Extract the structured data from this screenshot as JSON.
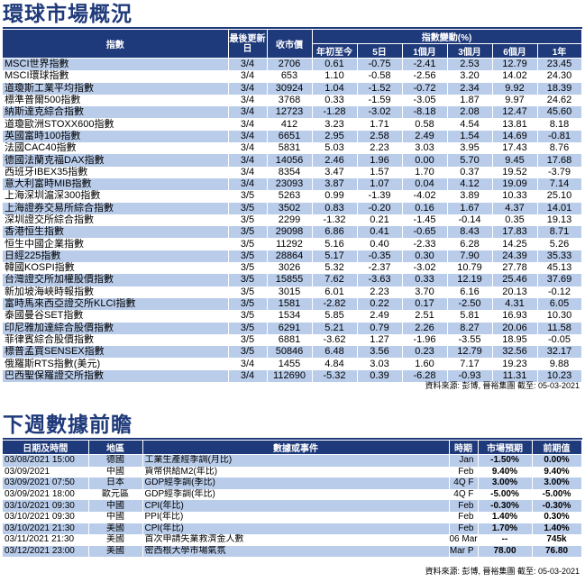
{
  "section1": {
    "title": "環球市場概況",
    "headers": {
      "index": "指數",
      "last_update": "最後更新日",
      "close": "收市價",
      "change_group": "指數變動(%)",
      "ytd": "年初至今",
      "d5": "5日",
      "m1": "1個月",
      "m3": "3個月",
      "m6": "6個月",
      "y1": "1年"
    },
    "rows": [
      {
        "name": "MSCI世界指數",
        "date": "3/4",
        "close": "2706",
        "ytd": "0.61",
        "d5": "-0.75",
        "m1": "-2.41",
        "m3": "2.53",
        "m6": "12.79",
        "y1": "23.45"
      },
      {
        "name": "MSCI環球指數",
        "date": "3/4",
        "close": "653",
        "ytd": "1.10",
        "d5": "-0.58",
        "m1": "-2.56",
        "m3": "3.20",
        "m6": "14.02",
        "y1": "24.30"
      },
      {
        "name": "道瓊斯工業平均指數",
        "date": "3/4",
        "close": "30924",
        "ytd": "1.04",
        "d5": "-1.52",
        "m1": "-0.72",
        "m3": "2.34",
        "m6": "9.92",
        "y1": "18.39"
      },
      {
        "name": "標準普爾500指數",
        "date": "3/4",
        "close": "3768",
        "ytd": "0.33",
        "d5": "-1.59",
        "m1": "-3.05",
        "m3": "1.87",
        "m6": "9.97",
        "y1": "24.62"
      },
      {
        "name": "納斯達克綜合指數",
        "date": "3/4",
        "close": "12723",
        "ytd": "-1.28",
        "d5": "-3.02",
        "m1": "-8.18",
        "m3": "2.08",
        "m6": "12.47",
        "y1": "45.60"
      },
      {
        "name": "道瓊歐洲STOXX600指數",
        "date": "3/4",
        "close": "412",
        "ytd": "3.23",
        "d5": "1.71",
        "m1": "0.58",
        "m3": "4.54",
        "m6": "13.81",
        "y1": "8.18"
      },
      {
        "name": "英國富時100指數",
        "date": "3/4",
        "close": "6651",
        "ytd": "2.95",
        "d5": "2.58",
        "m1": "2.49",
        "m3": "1.54",
        "m6": "14.69",
        "y1": "-0.81"
      },
      {
        "name": "法國CAC40指數",
        "date": "3/4",
        "close": "5831",
        "ytd": "5.03",
        "d5": "2.23",
        "m1": "3.03",
        "m3": "3.95",
        "m6": "17.43",
        "y1": "8.76"
      },
      {
        "name": "德國法蘭克福DAX指數",
        "date": "3/4",
        "close": "14056",
        "ytd": "2.46",
        "d5": "1.96",
        "m1": "0.00",
        "m3": "5.70",
        "m6": "9.45",
        "y1": "17.68"
      },
      {
        "name": "西班牙IBEX35指數",
        "date": "3/4",
        "close": "8354",
        "ytd": "3.47",
        "d5": "1.57",
        "m1": "1.70",
        "m3": "0.37",
        "m6": "19.52",
        "y1": "-3.79"
      },
      {
        "name": "意大利富時MIB指數",
        "date": "3/4",
        "close": "23093",
        "ytd": "3.87",
        "d5": "1.07",
        "m1": "0.04",
        "m3": "4.12",
        "m6": "19.09",
        "y1": "7.14"
      },
      {
        "name": "上海深圳滬深300指數",
        "date": "3/5",
        "close": "5263",
        "ytd": "0.99",
        "d5": "-1.39",
        "m1": "-4.02",
        "m3": "3.89",
        "m6": "10.33",
        "y1": "25.10"
      },
      {
        "name": "上海證券交易所綜合指數",
        "date": "3/5",
        "close": "3502",
        "ytd": "0.83",
        "d5": "-0.20",
        "m1": "0.16",
        "m3": "1.67",
        "m6": "4.37",
        "y1": "14.01"
      },
      {
        "name": "深圳證交所綜合指數",
        "date": "3/5",
        "close": "2299",
        "ytd": "-1.32",
        "d5": "0.21",
        "m1": "-1.45",
        "m3": "-0.14",
        "m6": "0.35",
        "y1": "19.13"
      },
      {
        "name": "香港恒生指數",
        "date": "3/5",
        "close": "29098",
        "ytd": "6.86",
        "d5": "0.41",
        "m1": "-0.65",
        "m3": "8.43",
        "m6": "17.83",
        "y1": "8.71"
      },
      {
        "name": "恒生中國企業指數",
        "date": "3/5",
        "close": "11292",
        "ytd": "5.16",
        "d5": "0.40",
        "m1": "-2.33",
        "m3": "6.28",
        "m6": "14.25",
        "y1": "5.26"
      },
      {
        "name": "日經225指數",
        "date": "3/5",
        "close": "28864",
        "ytd": "5.17",
        "d5": "-0.35",
        "m1": "0.30",
        "m3": "7.90",
        "m6": "24.39",
        "y1": "35.33"
      },
      {
        "name": "韓國KOSPI指數",
        "date": "3/5",
        "close": "3026",
        "ytd": "5.32",
        "d5": "-2.37",
        "m1": "-3.02",
        "m3": "10.79",
        "m6": "27.78",
        "y1": "45.13"
      },
      {
        "name": "台灣證交所加權股價指數",
        "date": "3/5",
        "close": "15855",
        "ytd": "7.62",
        "d5": "-3.63",
        "m1": "0.33",
        "m3": "12.19",
        "m6": "25.46",
        "y1": "37.69"
      },
      {
        "name": "新加坡海峽時報指數",
        "date": "3/5",
        "close": "3015",
        "ytd": "6.01",
        "d5": "2.23",
        "m1": "3.70",
        "m3": "6.16",
        "m6": "20.13",
        "y1": "-0.12"
      },
      {
        "name": "富時馬來西亞證交所KLCI指數",
        "date": "3/5",
        "close": "1581",
        "ytd": "-2.82",
        "d5": "0.22",
        "m1": "0.17",
        "m3": "-2.50",
        "m6": "4.31",
        "y1": "6.05"
      },
      {
        "name": "泰國曼谷SET指數",
        "date": "3/5",
        "close": "1534",
        "ytd": "5.85",
        "d5": "2.49",
        "m1": "2.51",
        "m3": "5.81",
        "m6": "16.93",
        "y1": "10.30"
      },
      {
        "name": "印尼雅加達綜合股價指數",
        "date": "3/5",
        "close": "6291",
        "ytd": "5.21",
        "d5": "0.79",
        "m1": "2.26",
        "m3": "8.27",
        "m6": "20.06",
        "y1": "11.58"
      },
      {
        "name": "菲律賓綜合股價指數",
        "date": "3/5",
        "close": "6881",
        "ytd": "-3.62",
        "d5": "1.27",
        "m1": "-1.96",
        "m3": "-3.55",
        "m6": "18.95",
        "y1": "-0.05"
      },
      {
        "name": "標普孟買SENSEX指數",
        "date": "3/5",
        "close": "50846",
        "ytd": "6.48",
        "d5": "3.56",
        "m1": "0.23",
        "m3": "12.79",
        "m6": "32.56",
        "y1": "32.17"
      },
      {
        "name": "俄羅斯RTS指數(美元)",
        "date": "3/4",
        "close": "1455",
        "ytd": "4.84",
        "d5": "3.03",
        "m1": "1.60",
        "m3": "7.17",
        "m6": "19.23",
        "y1": "9.88"
      },
      {
        "name": "巴西聖保羅證交所指數",
        "date": "3/4",
        "close": "112690",
        "ytd": "-5.32",
        "d5": "0.39",
        "m1": "-6.28",
        "m3": "-0.93",
        "m6": "11.31",
        "y1": "10.23"
      }
    ],
    "source": "資料來源: 彭博, 晉裕集團 截至: 05-03-2021"
  },
  "section2": {
    "title": "下週數據前瞻",
    "headers": {
      "datetime": "日期及時間",
      "region": "地區",
      "event": "數據或事件",
      "period": "時期",
      "expected": "市場預期",
      "previous": "前期值"
    },
    "rows": [
      {
        "datetime": "03/08/2021 15:00",
        "region": "德國",
        "event": "工業生產經季調(月比)",
        "period": "Jan",
        "expected": "-1.50%",
        "previous": "0.00%"
      },
      {
        "datetime": "03/09/2021",
        "region": "中國",
        "event": "貨幣供給M2(年比)",
        "period": "Feb",
        "expected": "9.40%",
        "previous": "9.40%"
      },
      {
        "datetime": "03/09/2021 07:50",
        "region": "日本",
        "event": "GDP經季調(季比)",
        "period": "4Q F",
        "expected": "3.00%",
        "previous": "3.00%"
      },
      {
        "datetime": "03/09/2021 18:00",
        "region": "歐元區",
        "event": "GDP經季調(年比)",
        "period": "4Q F",
        "expected": "-5.00%",
        "previous": "-5.00%"
      },
      {
        "datetime": "03/10/2021 09:30",
        "region": "中國",
        "event": "CPI(年比)",
        "period": "Feb",
        "expected": "-0.30%",
        "previous": "-0.30%"
      },
      {
        "datetime": "03/10/2021 09:30",
        "region": "中國",
        "event": "PPI(年比)",
        "period": "Feb",
        "expected": "1.40%",
        "previous": "0.30%"
      },
      {
        "datetime": "03/10/2021 21:30",
        "region": "美國",
        "event": "CPI(年比)",
        "period": "Feb",
        "expected": "1.70%",
        "previous": "1.40%"
      },
      {
        "datetime": "03/11/2021 21:30",
        "region": "美國",
        "event": "首次申請失業救濟金人數",
        "period": "06 Mar",
        "expected": "--",
        "previous": "745k"
      },
      {
        "datetime": "03/12/2021 23:00",
        "region": "美國",
        "event": "密西根大學市場氣氛",
        "period": "Mar P",
        "expected": "78.00",
        "previous": "76.80"
      }
    ],
    "source": "資料來源: 彭博, 晉裕集團 截至: 05-03-2021"
  }
}
